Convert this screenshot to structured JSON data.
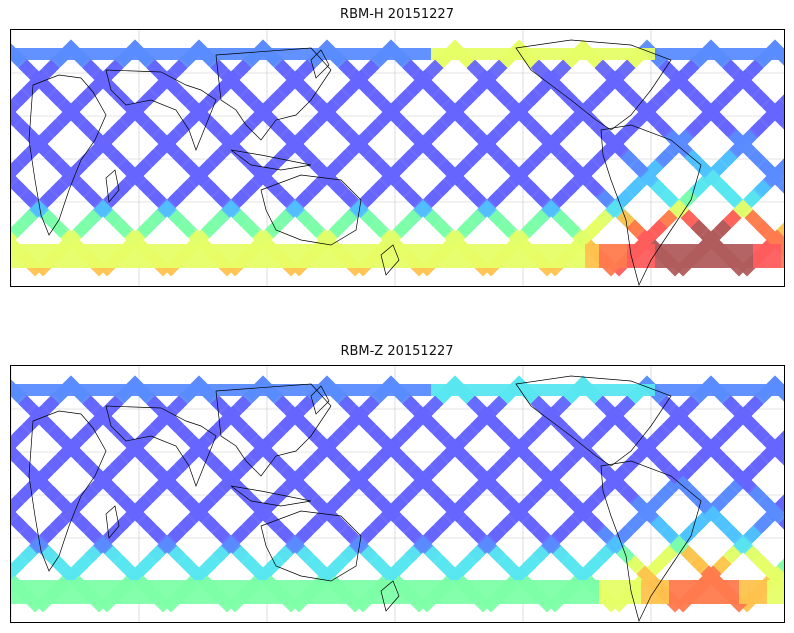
{
  "panels": [
    {
      "title": "RBM-H 20151227",
      "palette": "hot"
    },
    {
      "title": "RBM-Z 20151227",
      "palette": "mild"
    }
  ],
  "colormap": [
    "#6666ff",
    "#5a8cff",
    "#4fc3ff",
    "#58e6f0",
    "#7dffa8",
    "#e6ff66",
    "#ffc34d",
    "#ff7a4d",
    "#ff5c5c",
    "#b05c5c"
  ],
  "projection": "plate carree, central longitude ~90E",
  "grid": true
}
